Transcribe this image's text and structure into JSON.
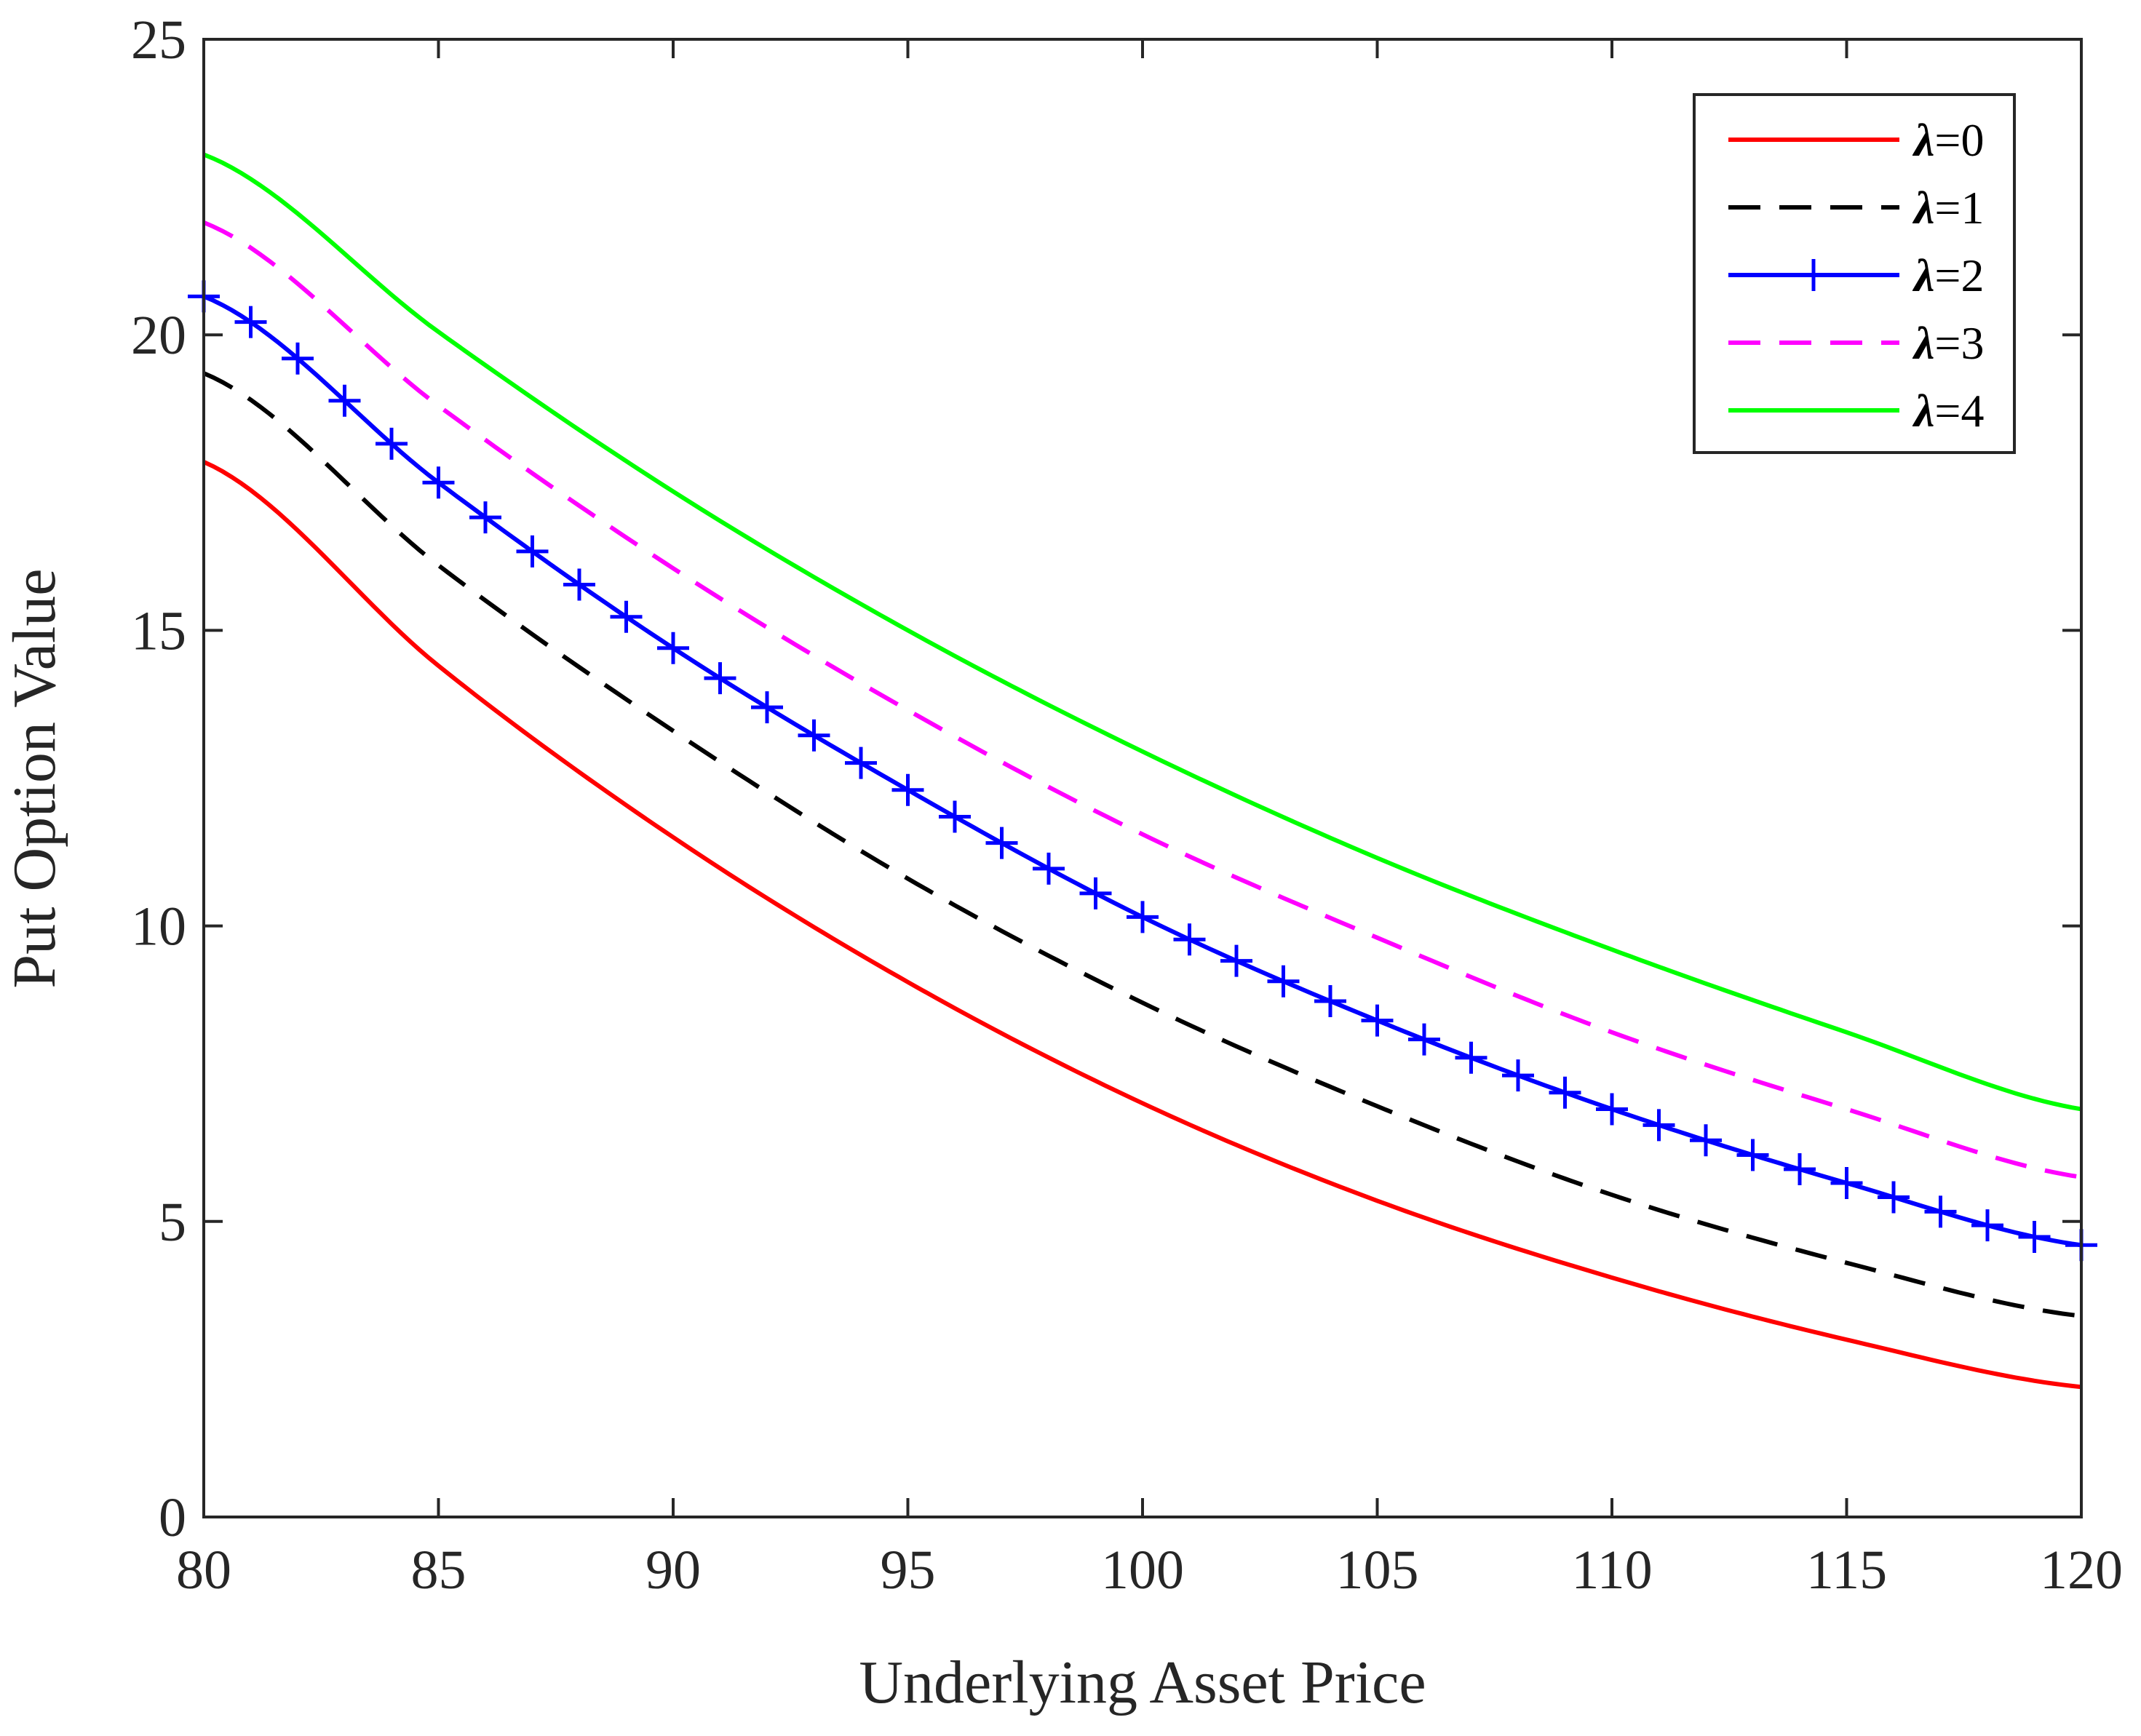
{
  "chart_data": {
    "type": "line",
    "title": "",
    "xlabel": "Underlying Asset Price",
    "ylabel": "Put Option Value",
    "xlim": [
      80,
      120
    ],
    "ylim": [
      0,
      25
    ],
    "xticks": [
      80,
      85,
      90,
      95,
      100,
      105,
      110,
      115,
      120
    ],
    "yticks": [
      0,
      5,
      10,
      15,
      20,
      25
    ],
    "grid": false,
    "legend_position": "top-right",
    "x": [
      80,
      85,
      90,
      95,
      100,
      105,
      110,
      115,
      120
    ],
    "series": [
      {
        "name": "=0",
        "symbol": "λ",
        "color": "#ff0000",
        "style": "solid",
        "marker": "none",
        "values": [
          17.85,
          14.4,
          11.5,
          9.05,
          7.0,
          5.35,
          4.05,
          3.0,
          2.2
        ]
      },
      {
        "name": "=1",
        "symbol": "λ",
        "color": "#000000",
        "style": "dashed",
        "marker": "none",
        "values": [
          19.35,
          16.1,
          13.3,
          10.8,
          8.7,
          6.95,
          5.45,
          4.3,
          3.4
        ]
      },
      {
        "name": "=2",
        "symbol": "λ",
        "color": "#0000ff",
        "style": "solid",
        "marker": "plus",
        "values": [
          20.65,
          17.5,
          14.7,
          12.3,
          10.15,
          8.4,
          6.9,
          5.65,
          4.6
        ]
      },
      {
        "name": "=3",
        "symbol": "λ",
        "color": "#ff00ff",
        "style": "dashed",
        "marker": "none",
        "values": [
          21.9,
          18.8,
          16.05,
          13.65,
          11.55,
          9.8,
          8.2,
          6.9,
          5.75
        ]
      },
      {
        "name": "=4",
        "symbol": "λ",
        "color": "#00ff00",
        "style": "solid",
        "marker": "none",
        "values": [
          23.05,
          20.05,
          17.35,
          15.0,
          12.95,
          11.15,
          9.6,
          8.2,
          6.9
        ]
      }
    ]
  }
}
